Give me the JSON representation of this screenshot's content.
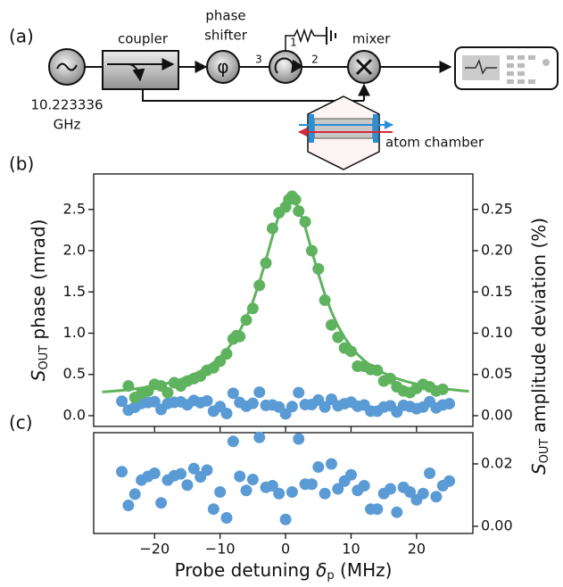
{
  "diagram": {
    "panel_label": "(a)",
    "source_label": [
      "10.223336",
      "GHz"
    ],
    "coupler": "coupler",
    "phase_shifter": [
      "phase",
      "shifter"
    ],
    "phase_symbol": "φ",
    "ports": [
      "3",
      "1",
      "2"
    ],
    "mixer": "mixer",
    "chamber": "atom chamber"
  },
  "chart_data": [
    {
      "type": "scatter",
      "panel_label": "(b)",
      "ylabel": [
        "S",
        "OUT",
        " phase (mrad)"
      ],
      "y2label": [
        "S",
        "OUT",
        " amplitude deviation (%)"
      ],
      "xlim": [
        -29.3,
        28.6
      ],
      "ylim": [
        -0.13,
        2.93
      ],
      "yticks": [
        {
          "value": 0,
          "label": "0.0"
        },
        0.5,
        {
          "value": 1,
          "label": "1.0"
        },
        1.5,
        {
          "value": 2,
          "label": "2.0"
        },
        2.5
      ],
      "y2lim": [
        -0.013,
        0.293
      ],
      "y2ticks": [
        {
          "value": 0,
          "label": "0.00"
        },
        0.05,
        {
          "value": 0.1,
          "label": "0.10"
        },
        0.15,
        {
          "value": 0.2,
          "label": "0.20"
        },
        0.25
      ],
      "series": [
        {
          "color": "#5b9bd5",
          "axis": "y2",
          "x": [
            -25,
            -24,
            -23,
            -22,
            -21,
            -20,
            -19,
            -18,
            -17,
            -16,
            -15,
            -14,
            -13,
            -12,
            -11,
            -10,
            -9,
            -8,
            -7,
            -6,
            -5,
            -4,
            -3,
            -2,
            -1,
            0,
            1,
            2,
            3,
            4,
            5,
            6,
            7,
            8,
            9,
            10,
            11,
            12,
            13,
            14,
            15,
            16,
            17,
            18,
            19,
            20,
            21,
            22,
            23,
            24,
            25
          ],
          "values": [
            0.0175,
            0.0067,
            0.0103,
            0.0148,
            0.016,
            0.017,
            0.0075,
            0.0148,
            0.0162,
            0.0168,
            0.0132,
            0.0185,
            0.0158,
            0.018,
            0.0055,
            0.011,
            0.0027,
            0.0272,
            0.016,
            0.0115,
            0.015,
            0.0285,
            0.0125,
            0.013,
            0.0105,
            0.0022,
            0.011,
            0.028,
            0.0135,
            0.0135,
            0.019,
            0.0105,
            0.02,
            0.012,
            0.0145,
            0.0165,
            0.0115,
            0.013,
            0.0055,
            0.0055,
            0.0105,
            0.012,
            0.0045,
            0.0125,
            0.011,
            0.0085,
            0.0105,
            0.017,
            0.0095,
            0.013,
            0.0145
          ]
        },
        {
          "color": "#5fb35f",
          "line": true,
          "x": [
            -28,
            -27,
            -26,
            -25,
            -24,
            -23,
            -22,
            -21,
            -20,
            -19,
            -18,
            -17,
            -16,
            -15,
            -14,
            -13,
            -12,
            -11,
            -10,
            -9,
            -8,
            -7,
            -6,
            -5,
            -4,
            -3,
            -2,
            -1,
            0,
            1,
            2,
            3,
            4,
            5,
            6,
            7,
            8,
            9,
            10,
            11,
            12,
            13,
            14,
            15,
            16,
            17,
            18,
            19,
            20,
            21,
            22,
            23,
            24,
            25,
            26,
            27,
            28
          ],
          "values": [
            0.287,
            0.293,
            0.3,
            0.307,
            0.316,
            0.325,
            0.336,
            0.348,
            0.362,
            0.377,
            0.395,
            0.416,
            0.44,
            0.468,
            0.501,
            0.54,
            0.587,
            0.643,
            0.712,
            0.796,
            0.9,
            1.028,
            1.186,
            1.381,
            1.616,
            1.887,
            2.174,
            2.436,
            2.611,
            2.643,
            2.52,
            2.285,
            2.001,
            1.721,
            1.47,
            1.26,
            1.087,
            0.948,
            0.835,
            0.744,
            0.669,
            0.608,
            0.558,
            0.516,
            0.48,
            0.45,
            0.425,
            0.403,
            0.384,
            0.368,
            0.353,
            0.34,
            0.329,
            0.319,
            0.311,
            0.303,
            0.296
          ]
        },
        {
          "color": "#5fb35f",
          "x": [
            -24,
            -23,
            -22,
            -21,
            -20,
            -19,
            -18,
            -17,
            -16,
            -15,
            -14,
            -13,
            -12,
            -11,
            -10,
            -9,
            -8,
            -7.5,
            -7,
            -6,
            -5,
            -4,
            -3,
            -2,
            -1,
            0,
            0.5,
            1,
            1.5,
            2,
            3,
            4,
            5,
            6,
            7,
            8,
            9,
            10,
            11,
            12,
            13,
            14,
            15,
            16,
            17,
            18,
            19,
            20,
            21,
            22,
            23,
            24
          ],
          "values": [
            0.36,
            0.22,
            0.27,
            0.3,
            0.38,
            0.36,
            0.28,
            0.4,
            0.36,
            0.42,
            0.45,
            0.48,
            0.55,
            0.58,
            0.66,
            0.75,
            0.93,
            0.97,
            0.96,
            1.16,
            1.3,
            1.58,
            1.85,
            2.27,
            2.46,
            2.53,
            2.62,
            2.66,
            2.62,
            2.48,
            2.35,
            2.0,
            1.78,
            1.4,
            1.1,
            0.95,
            0.82,
            0.78,
            0.6,
            0.6,
            0.56,
            0.55,
            0.42,
            0.45,
            0.35,
            0.3,
            0.28,
            0.33,
            0.38,
            0.35,
            0.3,
            0.32
          ]
        }
      ]
    },
    {
      "type": "scatter",
      "panel_label": "(c)",
      "xlabel": [
        "Probe detuning ",
        "δ",
        "p",
        " (MHz)"
      ],
      "xlim": [
        -29.3,
        28.6
      ],
      "xticks": [
        {
          "value": -20,
          "label": "−20"
        },
        {
          "value": -10,
          "label": "−10"
        },
        0,
        10,
        20
      ],
      "y2lim": [
        -0.0023,
        0.03
      ],
      "y2ticks": [
        {
          "value": 0,
          "label": "0.00"
        },
        0.02
      ],
      "series": [
        {
          "color": "#5b9bd5",
          "axis": "y2",
          "x": [
            -25,
            -24,
            -23,
            -22,
            -21,
            -20,
            -19,
            -18,
            -17,
            -16,
            -15,
            -14,
            -13,
            -12,
            -11,
            -10,
            -9,
            -8,
            -7,
            -6,
            -5,
            -4,
            -3,
            -2,
            -1,
            0,
            1,
            2,
            3,
            4,
            5,
            6,
            7,
            8,
            9,
            10,
            11,
            12,
            13,
            14,
            15,
            16,
            17,
            18,
            19,
            20,
            21,
            22,
            23,
            24,
            25
          ],
          "values": [
            0.0175,
            0.0067,
            0.0103,
            0.0148,
            0.016,
            0.017,
            0.0075,
            0.0148,
            0.0162,
            0.0168,
            0.0132,
            0.0185,
            0.0158,
            0.018,
            0.0055,
            0.011,
            0.0027,
            0.0272,
            0.016,
            0.0115,
            0.015,
            0.0285,
            0.0125,
            0.013,
            0.0105,
            0.0022,
            0.011,
            0.028,
            0.0135,
            0.0135,
            0.019,
            0.0105,
            0.02,
            0.012,
            0.0145,
            0.0165,
            0.0115,
            0.013,
            0.0055,
            0.0055,
            0.0105,
            0.012,
            0.0045,
            0.0125,
            0.011,
            0.0085,
            0.0105,
            0.017,
            0.0095,
            0.013,
            0.0145
          ]
        }
      ]
    }
  ]
}
